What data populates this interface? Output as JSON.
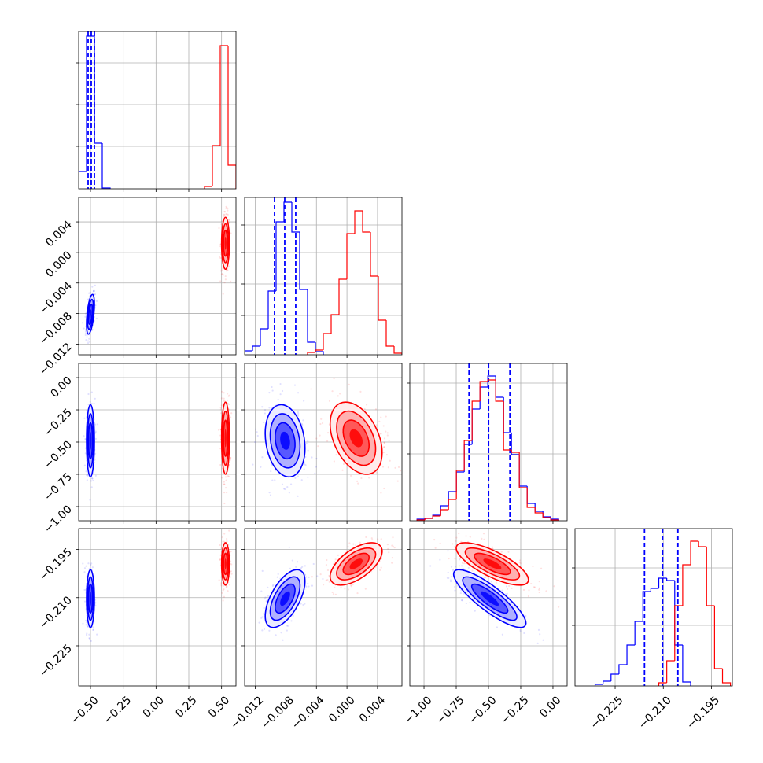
{
  "chart_data": {
    "type": "corner",
    "parameters": [
      {
        "lim": [
          -0.59,
          0.61
        ],
        "ticks": [
          {
            "value": -0.5,
            "label": "−0.50"
          },
          {
            "value": -0.25,
            "label": "−0.25"
          },
          {
            "value": 0,
            "label": "0.00"
          },
          {
            "value": 0.25,
            "label": "0.25"
          },
          {
            "value": 0.5,
            "label": "0.50"
          }
        ],
        "hist_ylim": [
          0,
          200
        ],
        "hist_yticks": [
          54,
          107,
          160
        ]
      },
      {
        "lim": [
          -0.0134,
          0.0072
        ],
        "ticks": [
          {
            "value": -0.012,
            "label": "−0.012"
          },
          {
            "value": -0.008,
            "label": "−0.008"
          },
          {
            "value": -0.004,
            "label": "−0.004"
          },
          {
            "value": 0,
            "label": "0.000"
          },
          {
            "value": 0.004,
            "label": "0.004"
          }
        ],
        "hist_ylim": [
          0,
          200
        ],
        "hist_yticks": [
          50,
          90,
          130,
          165
        ]
      },
      {
        "lim": [
          -1.11,
          0.11
        ],
        "ticks": [
          {
            "value": -1,
            "label": "−1.00"
          },
          {
            "value": -0.75,
            "label": "−0.75"
          },
          {
            "value": -0.5,
            "label": "−0.50"
          },
          {
            "value": -0.25,
            "label": "−0.25"
          },
          {
            "value": 0,
            "label": "0.00"
          }
        ],
        "hist_ylim": [
          0,
          200
        ],
        "hist_yticks": [
          85,
          175
        ]
      },
      {
        "lim": [
          -0.2375,
          -0.1885
        ],
        "ticks": [
          {
            "value": -0.225,
            "label": "−0.225"
          },
          {
            "value": -0.21,
            "label": "−0.210"
          },
          {
            "value": -0.195,
            "label": "−0.195"
          }
        ],
        "hist_ylim": [
          0,
          200
        ],
        "hist_yticks": [
          77,
          150
        ]
      }
    ],
    "series": [
      {
        "color": "#0000ff",
        "means": [
          -0.5,
          -0.0081,
          -0.49,
          -0.2103
        ],
        "sds": [
          0.015,
          0.0013,
          0.14,
          0.0045
        ],
        "correlations": [
          [],
          [
            0.5
          ],
          [
            0,
            -0.2
          ],
          [
            0,
            0.6,
            -0.85
          ]
        ],
        "histograms": [
          {
            "bins": [
              -0.59,
              -0.53,
              -0.47,
              -0.41,
              -0.35
            ],
            "counts": [
              22,
              194,
              58,
              1
            ]
          },
          {
            "bins": [
              -0.0134,
              -0.01237,
              -0.01134,
              -0.01031,
              -0.00928,
              -0.00825,
              -0.00722,
              -0.00619,
              -0.00516,
              -0.00413,
              -0.0031
            ],
            "counts": [
              5,
              11,
              33,
              81,
              169,
              194,
              156,
              83,
              16,
              4
            ]
          },
          {
            "bins": [
              -1.054,
              -0.993,
              -0.932,
              -0.871,
              -0.81,
              -0.749,
              -0.688,
              -0.627,
              -0.566,
              -0.505,
              -0.444,
              -0.383,
              -0.322,
              -0.261,
              -0.2,
              -0.139,
              -0.078,
              -0.017,
              0.044
            ],
            "counts": [
              2,
              3,
              7,
              19,
              37,
              62,
              97,
              142,
              170,
              184,
              157,
              112,
              84,
              44,
              22,
              12,
              5,
              2
            ]
          },
          {
            "bins": [
              -0.23124,
              -0.22876,
              -0.22628,
              -0.2238,
              -0.22132,
              -0.21884,
              -0.21636,
              -0.21388,
              -0.2114,
              -0.20892,
              -0.20644,
              -0.20396,
              -0.20148
            ],
            "counts": [
              2,
              6,
              15,
              27,
              52,
              82,
              120,
              124,
              137,
              134,
              52,
              5
            ]
          }
        ],
        "quantiles": [
          [
            -0.518,
            -0.494,
            -0.47
          ],
          [
            -0.00949,
            -0.00815,
            -0.00671
          ],
          [
            -0.651,
            -0.499,
            -0.334
          ],
          [
            -0.21586,
            -0.2102,
            -0.20545
          ]
        ]
      },
      {
        "color": "#ff0000",
        "means": [
          0.53,
          0.0012,
          -0.47,
          -0.1995
        ],
        "sds": [
          0.015,
          0.0017,
          0.14,
          0.0033
        ],
        "correlations": [
          [],
          [
            0
          ],
          [
            0,
            -0.4
          ],
          [
            0,
            0.6,
            -0.75
          ]
        ],
        "histograms": [
          {
            "bins": [
              0.37,
              0.43,
              0.49,
              0.55,
              0.61
            ],
            "counts": [
              3,
              55,
              182,
              30
            ]
          },
          {
            "bins": [
              -0.00516,
              -0.00413,
              -0.0031,
              -0.00207,
              -0.00104,
              -1e-05,
              0.00102,
              0.00205,
              0.00308,
              0.00411,
              0.00514,
              0.00617,
              0.0072
            ],
            "counts": [
              3,
              6,
              27,
              51,
              96,
              154,
              183,
              156,
              100,
              44,
              11,
              2
            ]
          },
          {
            "bins": [
              -1.054,
              -0.993,
              -0.932,
              -0.871,
              -0.81,
              -0.749,
              -0.688,
              -0.627,
              -0.566,
              -0.505,
              -0.444,
              -0.383,
              -0.322,
              -0.261,
              -0.2,
              -0.139,
              -0.078,
              -0.017,
              0.044
            ],
            "counts": [
              1,
              3,
              6,
              14,
              27,
              64,
              102,
              152,
              177,
              179,
              152,
              90,
              87,
              42,
              17,
              10,
              4,
              1
            ]
          },
          {
            "bins": [
              -0.2114,
              -0.20892,
              -0.20644,
              -0.20396,
              -0.20148,
              -0.199,
              -0.19652,
              -0.19404,
              -0.19156,
              -0.18908
            ],
            "counts": [
              4,
              32,
              102,
              154,
              184,
              177,
              102,
              22,
              4
            ]
          }
        ]
      }
    ]
  }
}
